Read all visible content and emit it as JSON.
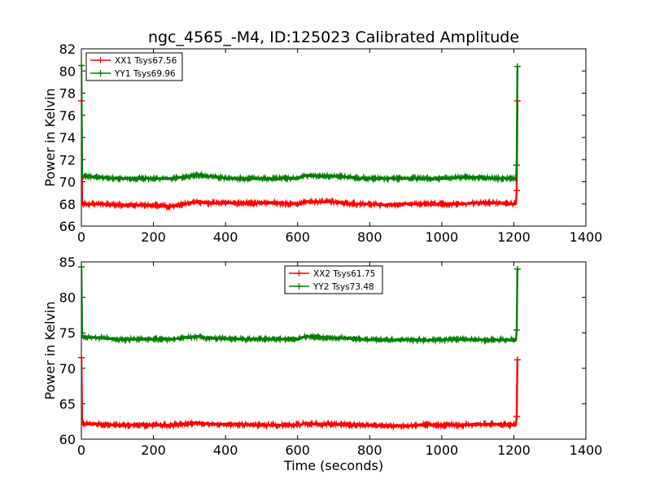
{
  "chart_data": [
    {
      "type": "line",
      "title": "ngc_4565_-M4, ID:125023 Calibrated Amplitude",
      "xlabel": "",
      "ylabel": "Power in Kelvin",
      "xlim": [
        0,
        1400
      ],
      "ylim": [
        66,
        82
      ],
      "xticks": [
        "0",
        "200",
        "400",
        "600",
        "800",
        "1000",
        "1200",
        "1400"
      ],
      "yticks": [
        "66",
        "68",
        "70",
        "72",
        "74",
        "76",
        "78",
        "80",
        "82"
      ],
      "legend_position": "top-left",
      "series": [
        {
          "name": "XX1 Tsys67.56",
          "color": "#ff0000",
          "x": [
            0,
            2,
            4,
            50,
            100,
            150,
            200,
            250,
            300,
            320,
            350,
            400,
            450,
            500,
            550,
            600,
            620,
            650,
            700,
            750,
            800,
            850,
            900,
            950,
            1000,
            1050,
            1100,
            1150,
            1200,
            1206,
            1208,
            1210
          ],
          "y": [
            77.3,
            68.2,
            68.0,
            68.0,
            67.9,
            67.9,
            67.9,
            67.8,
            68.1,
            68.2,
            68.1,
            68.1,
            68.1,
            68.1,
            68.1,
            68.0,
            68.2,
            68.2,
            68.2,
            68.0,
            68.0,
            67.9,
            68.0,
            68.0,
            68.0,
            68.0,
            68.1,
            68.1,
            68.0,
            68.0,
            69.2,
            77.3
          ]
        },
        {
          "name": "YY1 Tsys69.96",
          "color": "#008000",
          "x": [
            0,
            2,
            4,
            50,
            100,
            150,
            200,
            250,
            300,
            320,
            350,
            400,
            450,
            500,
            550,
            600,
            620,
            650,
            700,
            750,
            800,
            850,
            900,
            950,
            1000,
            1050,
            1100,
            1150,
            1200,
            1206,
            1208,
            1210
          ],
          "y": [
            80.5,
            70.6,
            70.5,
            70.4,
            70.3,
            70.3,
            70.3,
            70.3,
            70.5,
            70.6,
            70.5,
            70.3,
            70.3,
            70.3,
            70.3,
            70.3,
            70.6,
            70.5,
            70.5,
            70.4,
            70.3,
            70.3,
            70.3,
            70.3,
            70.3,
            70.4,
            70.4,
            70.3,
            70.3,
            70.3,
            71.5,
            80.4
          ]
        }
      ]
    },
    {
      "type": "line",
      "title": "",
      "xlabel": "Time (seconds)",
      "ylabel": "Power in Kelvin",
      "xlim": [
        0,
        1400
      ],
      "ylim": [
        60,
        85
      ],
      "xticks": [
        "0",
        "200",
        "400",
        "600",
        "800",
        "1000",
        "1200",
        "1400"
      ],
      "yticks": [
        "60",
        "65",
        "70",
        "75",
        "80",
        "85"
      ],
      "legend_position": "top-center",
      "series": [
        {
          "name": "XX2 Tsys61.75",
          "color": "#ff0000",
          "x": [
            0,
            1,
            2,
            4,
            50,
            100,
            150,
            200,
            250,
            300,
            320,
            350,
            400,
            450,
            500,
            550,
            600,
            620,
            650,
            700,
            750,
            800,
            850,
            900,
            950,
            1000,
            1050,
            1100,
            1150,
            1200,
            1206,
            1208,
            1210
          ],
          "y": [
            71.5,
            67.5,
            62.3,
            62.2,
            62.1,
            62.0,
            62.0,
            62.0,
            62.0,
            62.2,
            62.3,
            62.1,
            62.1,
            62.1,
            62.0,
            62.0,
            62.0,
            62.2,
            62.1,
            62.1,
            62.0,
            62.0,
            61.9,
            61.9,
            62.0,
            62.0,
            62.0,
            62.1,
            62.1,
            62.0,
            62.0,
            63.2,
            71.2
          ]
        },
        {
          "name": "YY2 Tsys73.48",
          "color": "#008000",
          "x": [
            0,
            1,
            2,
            4,
            50,
            100,
            150,
            200,
            250,
            300,
            320,
            350,
            400,
            450,
            500,
            550,
            600,
            620,
            650,
            700,
            750,
            800,
            850,
            900,
            950,
            1000,
            1050,
            1100,
            1150,
            1200,
            1206,
            1208,
            1210
          ],
          "y": [
            84.3,
            80.0,
            74.5,
            74.4,
            74.3,
            74.1,
            74.1,
            74.1,
            74.1,
            74.4,
            74.5,
            74.3,
            74.2,
            74.1,
            74.1,
            74.1,
            74.1,
            74.5,
            74.4,
            74.3,
            74.2,
            74.0,
            74.0,
            74.0,
            74.0,
            74.0,
            74.1,
            74.0,
            74.0,
            74.0,
            74.0,
            75.4,
            84.0
          ]
        }
      ]
    }
  ]
}
